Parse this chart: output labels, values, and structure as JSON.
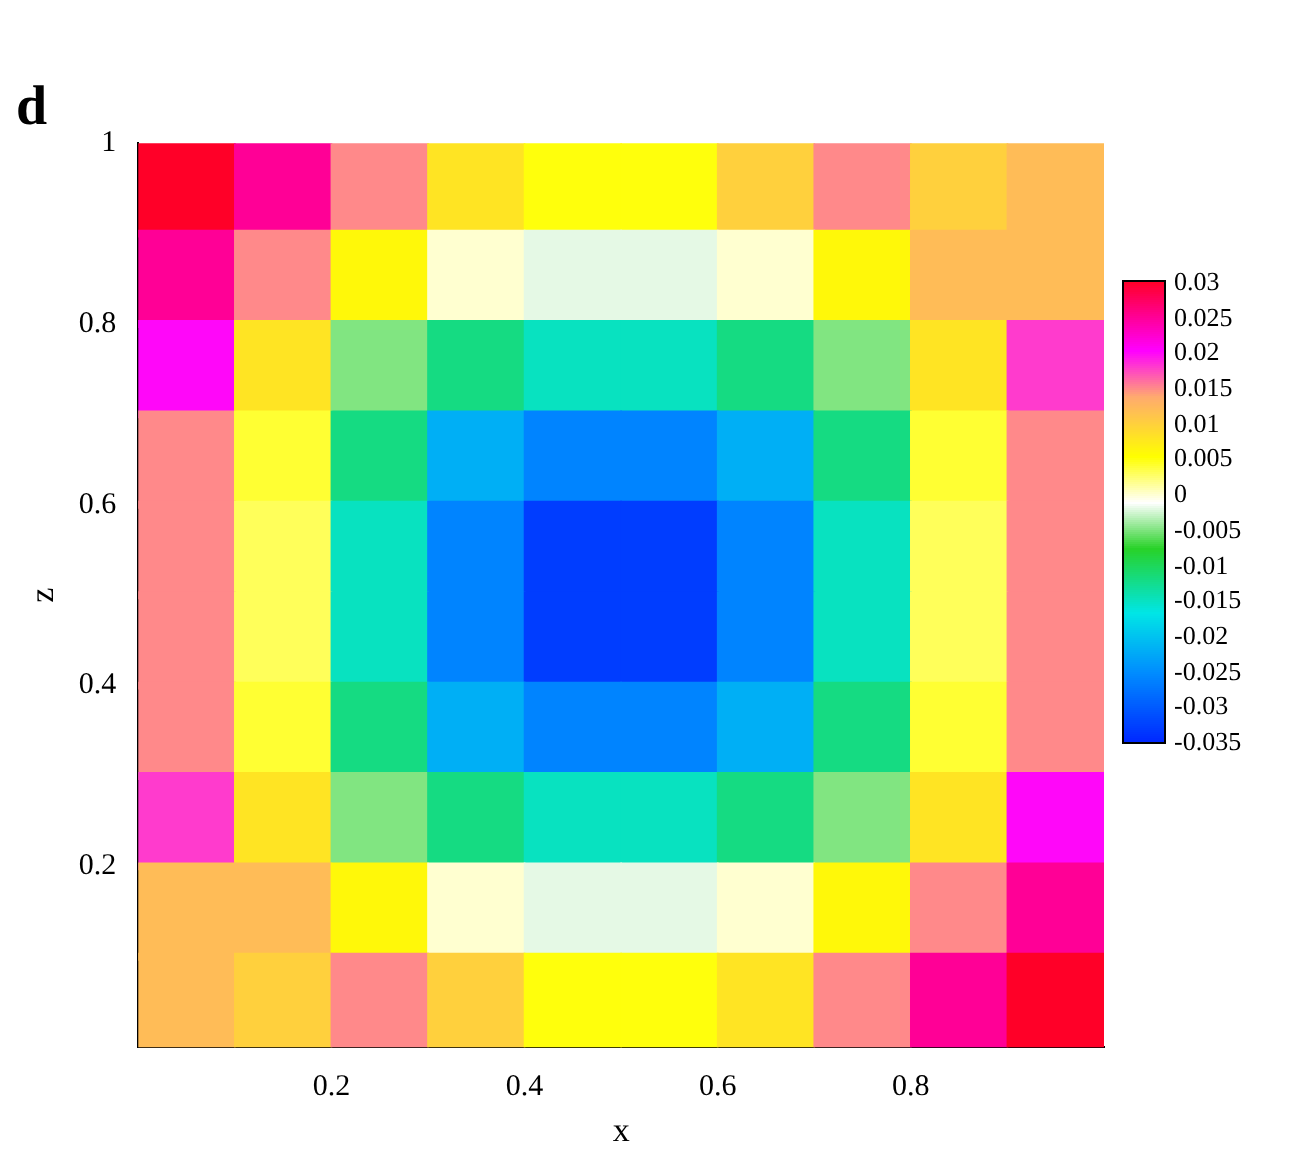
{
  "chart_data": {
    "type": "heatmap",
    "title": "d",
    "xlabel": "x",
    "ylabel": "z",
    "xlim": [
      0,
      1
    ],
    "ylim": [
      0,
      1
    ],
    "xticks": [
      0.2,
      0.4,
      0.6,
      0.8
    ],
    "yticks": [
      0.2,
      0.4,
      0.6,
      0.8,
      1
    ],
    "clim": [
      -0.035,
      0.03
    ],
    "cticks": [
      0.03,
      0.025,
      0.02,
      0.015,
      0.01,
      0.005,
      0,
      -0.005,
      -0.01,
      -0.015,
      -0.02,
      -0.025,
      -0.03,
      -0.035
    ],
    "cells": [
      [
        0.03,
        0.025,
        0.015,
        0.008,
        0.005,
        0.005,
        0.01,
        0.015,
        0.01,
        0.012
      ],
      [
        0.025,
        0.015,
        0.006,
        0,
        -0.002,
        -0.002,
        0,
        0.006,
        0.012,
        0.012
      ],
      [
        0.02,
        0.008,
        -0.005,
        -0.012,
        -0.015,
        -0.015,
        -0.012,
        -0.005,
        0.008,
        0.018
      ],
      [
        0.015,
        0.004,
        -0.012,
        -0.022,
        -0.026,
        -0.026,
        -0.022,
        -0.012,
        0.004,
        0.015
      ],
      [
        0.015,
        0.003,
        -0.015,
        -0.026,
        -0.033,
        -0.033,
        -0.026,
        -0.015,
        0.003,
        0.015
      ],
      [
        0.015,
        0.003,
        -0.015,
        -0.026,
        -0.033,
        -0.033,
        -0.026,
        -0.015,
        0.003,
        0.015
      ],
      [
        0.015,
        0.004,
        -0.012,
        -0.022,
        -0.026,
        -0.026,
        -0.022,
        -0.012,
        0.004,
        0.015
      ],
      [
        0.018,
        0.008,
        -0.005,
        -0.012,
        -0.015,
        -0.015,
        -0.012,
        -0.005,
        0.008,
        0.02
      ],
      [
        0.012,
        0.012,
        0.006,
        0,
        -0.002,
        -0.002,
        0,
        0.006,
        0.015,
        0.025
      ],
      [
        0.012,
        0.01,
        0.015,
        0.01,
        0.005,
        0.005,
        0.008,
        0.015,
        0.025,
        0.03
      ]
    ]
  }
}
